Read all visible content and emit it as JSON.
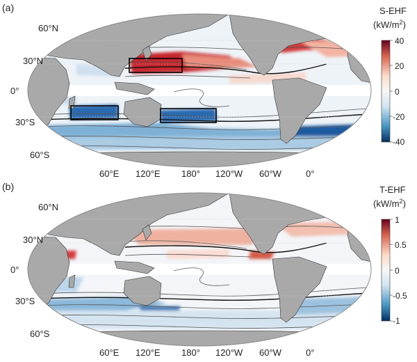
{
  "panels": [
    {
      "id": "a",
      "panel_label": "(a)",
      "variable": "S-EHF",
      "units_label": "(kW/m",
      "units_exponent": "2",
      "units_close": ")",
      "colorbar_ticks": [
        "40",
        "20",
        "0",
        "-20",
        "-40"
      ],
      "lat_labels": [
        "60°N",
        "30°N",
        "0°",
        "30°S",
        "60°S"
      ],
      "lon_labels": [
        "60°E",
        "120°E",
        "180°",
        "120°W",
        "60°W",
        "0°"
      ]
    },
    {
      "id": "b",
      "panel_label": "(b)",
      "variable": "T-EHF",
      "units_label": "(kW/m",
      "units_exponent": "2",
      "units_close": ")",
      "colorbar_ticks": [
        "1",
        "0.5",
        "0",
        "-0.5",
        "-1"
      ],
      "lat_labels": [
        "60°N",
        "30°N",
        "0°",
        "30°S",
        "60°S"
      ],
      "lon_labels": [
        "60°E",
        "120°E",
        "180°",
        "120°W",
        "60°W",
        "0°"
      ]
    }
  ],
  "colors": {
    "land": "#a9a9a9",
    "ocean_neutral": "#f4f4f4",
    "positive": "#b2182b",
    "negative": "#2166ac"
  }
}
